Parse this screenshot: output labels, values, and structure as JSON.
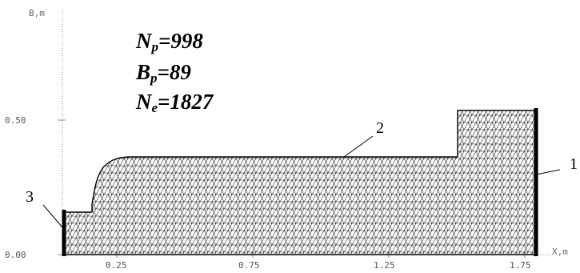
{
  "axes": {
    "y_label": "B,m",
    "x_label": "X,m",
    "y_ticks": [
      "0.50",
      "0.00"
    ],
    "x_ticks": [
      "0.25",
      "0.75",
      "1.25",
      "1.75"
    ]
  },
  "parameters": [
    {
      "symbol": "N",
      "sub": "p",
      "value": "=998"
    },
    {
      "symbol": "B",
      "sub": "p",
      "value": "=89"
    },
    {
      "symbol": "N",
      "sub": "e",
      "value": "=1827"
    }
  ],
  "callouts": [
    {
      "label": "2",
      "meaning": "upper boundary"
    },
    {
      "label": "1",
      "meaning": "right boundary"
    },
    {
      "label": "3",
      "meaning": "left boundary"
    }
  ],
  "colors": {
    "mesh": "#222222",
    "boundary": "#000000",
    "axis": "#888888"
  }
}
